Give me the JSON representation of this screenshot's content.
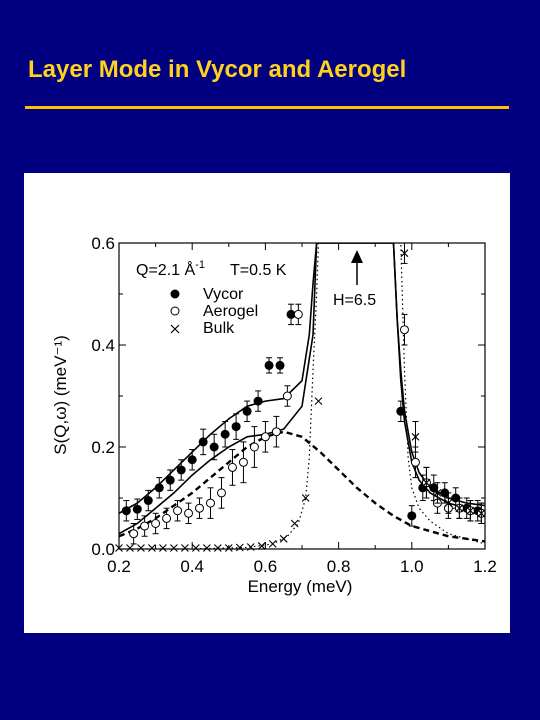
{
  "slide": {
    "title": "Layer Mode in Vycor and Aerogel",
    "title_color": "#FFD21F",
    "rule_color": "#FFC000",
    "background": "#000080"
  },
  "chart_data": {
    "type": "scatter",
    "title": "",
    "xlabel": "Energy    (meV)",
    "ylabel": "S(Q,ω)    (meV⁻¹)",
    "xlim": [
      0.2,
      1.2
    ],
    "ylim": [
      0.0,
      0.6
    ],
    "x_ticks": [
      "0.2",
      "0.4",
      "0.6",
      "0.8",
      "1.0",
      "1.2"
    ],
    "y_ticks": [
      "0.0",
      "0.2",
      "0.4",
      "0.6"
    ],
    "grid": false,
    "conditions": {
      "q": "Q=2.1 Å",
      "q_exp": "-1",
      "t": "T=0.5 K"
    },
    "annotation": "H=6.5",
    "legend": [
      {
        "label": "Vycor",
        "marker": "filled-circle"
      },
      {
        "label": "Aerogel",
        "marker": "open-circle"
      },
      {
        "label": "Bulk",
        "marker": "cross"
      }
    ],
    "series": [
      {
        "name": "Vycor",
        "marker": "filled-circle",
        "x": [
          0.22,
          0.25,
          0.28,
          0.31,
          0.34,
          0.37,
          0.4,
          0.43,
          0.46,
          0.49,
          0.52,
          0.55,
          0.58,
          0.61,
          0.64,
          0.67,
          0.97,
          1.0,
          1.03,
          1.06,
          1.09,
          1.12,
          1.15,
          1.18
        ],
        "y": [
          0.075,
          0.078,
          0.095,
          0.12,
          0.135,
          0.155,
          0.175,
          0.21,
          0.2,
          0.225,
          0.24,
          0.27,
          0.29,
          0.36,
          0.36,
          0.46,
          0.27,
          0.065,
          0.12,
          0.12,
          0.11,
          0.1,
          0.08,
          0.075
        ],
        "err": [
          0.02,
          0.02,
          0.02,
          0.02,
          0.02,
          0.02,
          0.02,
          0.025,
          0.025,
          0.025,
          0.025,
          0.02,
          0.02,
          0.015,
          0.015,
          0.02,
          0.02,
          0.02,
          0.025,
          0.025,
          0.02,
          0.02,
          0.02,
          0.02
        ]
      },
      {
        "name": "Aerogel",
        "marker": "open-circle",
        "x": [
          0.24,
          0.27,
          0.3,
          0.33,
          0.36,
          0.39,
          0.42,
          0.45,
          0.48,
          0.51,
          0.54,
          0.57,
          0.6,
          0.63,
          0.66,
          0.69,
          0.98,
          1.01,
          1.04,
          1.07,
          1.1,
          1.13,
          1.16,
          1.19
        ],
        "y": [
          0.03,
          0.045,
          0.05,
          0.06,
          0.075,
          0.07,
          0.08,
          0.09,
          0.11,
          0.16,
          0.17,
          0.2,
          0.22,
          0.23,
          0.3,
          0.46,
          0.43,
          0.17,
          0.13,
          0.09,
          0.08,
          0.08,
          0.075,
          0.07
        ],
        "err": [
          0.02,
          0.02,
          0.02,
          0.02,
          0.02,
          0.02,
          0.02,
          0.03,
          0.03,
          0.035,
          0.04,
          0.04,
          0.03,
          0.03,
          0.02,
          0.02,
          0.03,
          0.03,
          0.03,
          0.02,
          0.02,
          0.02,
          0.02,
          0.02
        ]
      },
      {
        "name": "Bulk",
        "marker": "cross",
        "x": [
          0.2,
          0.23,
          0.26,
          0.29,
          0.32,
          0.35,
          0.38,
          0.41,
          0.44,
          0.47,
          0.5,
          0.53,
          0.56,
          0.59,
          0.62,
          0.65,
          0.68,
          0.71,
          0.745,
          0.98,
          1.01,
          1.04,
          1.07,
          1.1,
          1.13,
          1.16,
          1.19
        ],
        "y": [
          0.002,
          0.002,
          0.002,
          0.002,
          0.002,
          0.002,
          0.002,
          0.002,
          0.002,
          0.002,
          0.002,
          0.003,
          0.004,
          0.006,
          0.01,
          0.02,
          0.05,
          0.1,
          0.29,
          0.58,
          0.22,
          0.13,
          0.11,
          0.09,
          0.08,
          0.075,
          0.07
        ],
        "err": [
          0,
          0,
          0,
          0,
          0,
          0,
          0,
          0,
          0,
          0,
          0,
          0,
          0,
          0,
          0,
          0,
          0,
          0,
          0,
          0.02,
          0.03,
          0.03,
          0.02,
          0.02,
          0.02,
          0.02,
          0.02
        ]
      }
    ],
    "curves": [
      {
        "name": "Vycor fit",
        "style": "solid",
        "x": [
          0.2,
          0.25,
          0.3,
          0.35,
          0.4,
          0.45,
          0.5,
          0.55,
          0.6,
          0.65,
          0.7,
          0.72,
          0.73,
          0.74,
          0.95,
          0.96,
          0.97,
          0.98,
          1.0,
          1.02,
          1.05,
          1.1,
          1.15,
          1.2
        ],
        "y": [
          0.07,
          0.09,
          0.12,
          0.155,
          0.19,
          0.225,
          0.255,
          0.28,
          0.29,
          0.295,
          0.33,
          0.42,
          0.52,
          0.6,
          0.6,
          0.45,
          0.35,
          0.27,
          0.19,
          0.15,
          0.12,
          0.1,
          0.09,
          0.085
        ]
      },
      {
        "name": "Aerogel fit",
        "style": "solid",
        "x": [
          0.2,
          0.25,
          0.3,
          0.35,
          0.4,
          0.45,
          0.5,
          0.55,
          0.6,
          0.65,
          0.7,
          0.73,
          0.74,
          0.95,
          0.96,
          0.97,
          0.98,
          1.0,
          1.02,
          1.05,
          1.1,
          1.15,
          1.2
        ],
        "y": [
          0.03,
          0.05,
          0.08,
          0.11,
          0.145,
          0.175,
          0.2,
          0.22,
          0.225,
          0.235,
          0.28,
          0.42,
          0.6,
          0.6,
          0.45,
          0.33,
          0.25,
          0.17,
          0.135,
          0.11,
          0.09,
          0.08,
          0.075
        ]
      },
      {
        "name": "layer mode",
        "style": "dashed",
        "x": [
          0.2,
          0.25,
          0.3,
          0.35,
          0.4,
          0.45,
          0.5,
          0.55,
          0.6,
          0.65,
          0.7,
          0.75,
          0.8,
          0.85,
          0.9,
          0.95,
          1.0,
          1.05,
          1.1,
          1.15,
          1.2
        ],
        "y": [
          0.025,
          0.04,
          0.06,
          0.085,
          0.11,
          0.14,
          0.17,
          0.2,
          0.22,
          0.23,
          0.22,
          0.19,
          0.155,
          0.12,
          0.09,
          0.065,
          0.045,
          0.035,
          0.025,
          0.02,
          0.015
        ]
      },
      {
        "name": "bulk fit",
        "style": "dotted",
        "x": [
          0.2,
          0.4,
          0.55,
          0.62,
          0.66,
          0.69,
          0.71,
          0.72,
          0.73,
          0.74,
          0.745,
          0.97,
          0.98,
          0.99,
          1.0,
          1.02,
          1.05,
          1.1,
          1.15,
          1.2
        ],
        "y": [
          0.0,
          0.0,
          0.003,
          0.01,
          0.025,
          0.05,
          0.1,
          0.18,
          0.35,
          0.5,
          0.6,
          0.6,
          0.35,
          0.18,
          0.12,
          0.08,
          0.055,
          0.03,
          0.02,
          0.01
        ]
      }
    ]
  }
}
